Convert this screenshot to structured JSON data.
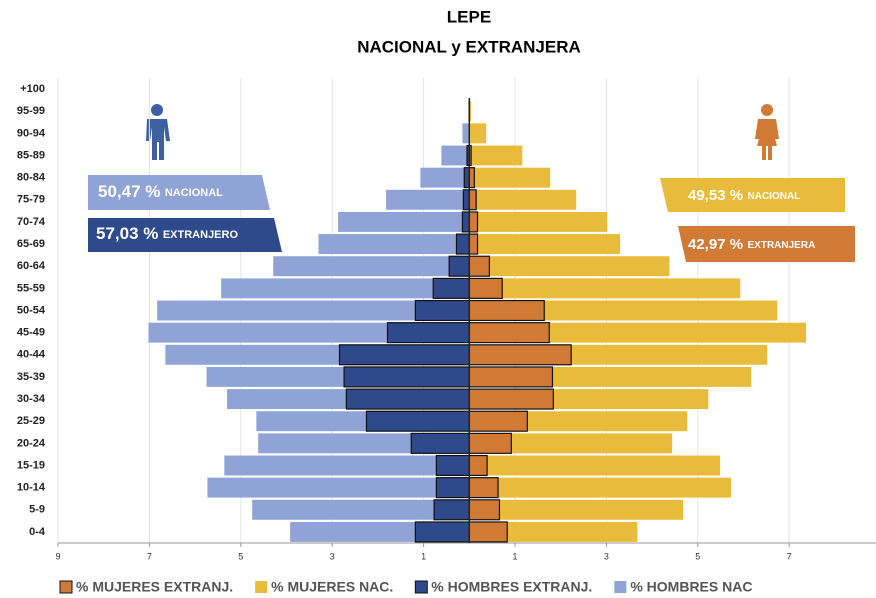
{
  "chart_data": {
    "type": "pyramid",
    "title": "LEPE",
    "subtitle": "NACIONAL y EXTRANJERA",
    "categories": [
      "0-4",
      "5-9",
      "10-14",
      "15-19",
      "20-24",
      "25-29",
      "30-34",
      "35-39",
      "40-44",
      "45-49",
      "50-54",
      "55-59",
      "60-64",
      "65-69",
      "70-74",
      "75-79",
      "80-84",
      "85-89",
      "90-94",
      "95-99",
      "+100"
    ],
    "series": [
      {
        "name": "% MUJERES EXTRANJ.",
        "color": "#d17a36",
        "side": "right",
        "outline": true,
        "values": [
          0.83,
          0.66,
          0.63,
          0.39,
          0.92,
          1.27,
          1.84,
          1.82,
          2.23,
          1.75,
          1.64,
          0.72,
          0.44,
          0.18,
          0.18,
          0.15,
          0.11,
          0.04,
          0,
          0,
          0
        ]
      },
      {
        "name": "% MUJERES NAC.",
        "color": "#e8bc3a",
        "side": "right",
        "outline": false,
        "values": [
          3.68,
          4.68,
          5.73,
          5.49,
          4.44,
          4.77,
          5.23,
          6.17,
          6.52,
          7.37,
          6.74,
          5.93,
          4.38,
          3.3,
          3.02,
          2.34,
          1.77,
          1.16,
          0.37,
          0.04,
          0
        ]
      },
      {
        "name": "% HOMBRES EXTRANJ.",
        "color": "#2f4a8a",
        "side": "left",
        "outline": true,
        "values": [
          1.18,
          0.77,
          0.72,
          0.72,
          1.27,
          2.25,
          2.69,
          2.74,
          2.84,
          1.79,
          1.18,
          0.79,
          0.44,
          0.28,
          0.15,
          0.13,
          0.11,
          0.05,
          0,
          0,
          0
        ]
      },
      {
        "name": "% HOMBRES NAC",
        "color": "#8fa3d6",
        "side": "left",
        "outline": false,
        "values": [
          3.92,
          4.75,
          5.73,
          5.36,
          4.62,
          4.66,
          5.3,
          5.75,
          6.65,
          7.02,
          6.83,
          5.43,
          4.29,
          3.3,
          2.87,
          1.82,
          1.07,
          0.61,
          0.15,
          0.02,
          0
        ]
      }
    ],
    "xlim": [
      -9,
      8.9
    ],
    "xticks": [
      {
        "value": -9,
        "label": "9"
      },
      {
        "value": -7,
        "label": "7"
      },
      {
        "value": -5,
        "label": "5"
      },
      {
        "value": -3,
        "label": "3"
      },
      {
        "value": -1,
        "label": "1"
      },
      1,
      3,
      5,
      7
    ],
    "grid": true,
    "annotations": [
      {
        "amount": "50,47 %",
        "label": "NACIONAL"
      },
      {
        "amount": "57,03 %",
        "label": "EXTRANJERO"
      },
      {
        "amount": "49,53 %",
        "label": "NACIONAL"
      },
      {
        "amount": "42,97 %",
        "label": "EXTRANJERA"
      }
    ]
  }
}
